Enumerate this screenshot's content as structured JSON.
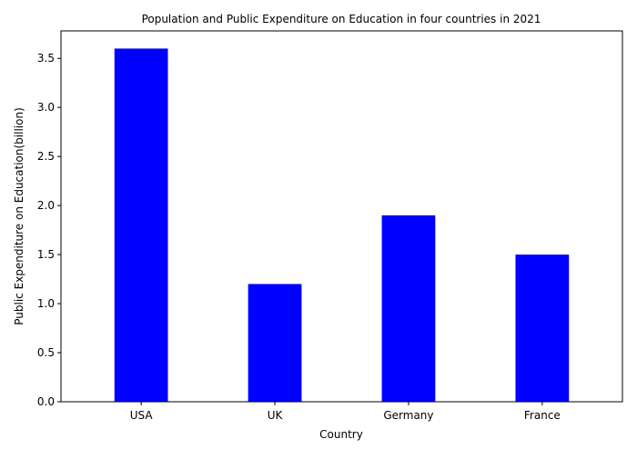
{
  "chart_data": {
    "type": "bar",
    "title": "Population and Public Expenditure on Education in four countries in 2021",
    "xlabel": "Country",
    "ylabel": "Public Expenditure on Education(billion)",
    "categories": [
      "USA",
      "UK",
      "Germany",
      "France"
    ],
    "values": [
      3.6,
      1.2,
      1.9,
      1.5
    ],
    "ylim": [
      0,
      3.78
    ],
    "yticks": [
      "0.0",
      "0.5",
      "1.0",
      "1.5",
      "2.0",
      "2.5",
      "3.0",
      "3.5"
    ],
    "bar_color": "#0000ff",
    "grid": false,
    "legend": "none"
  }
}
